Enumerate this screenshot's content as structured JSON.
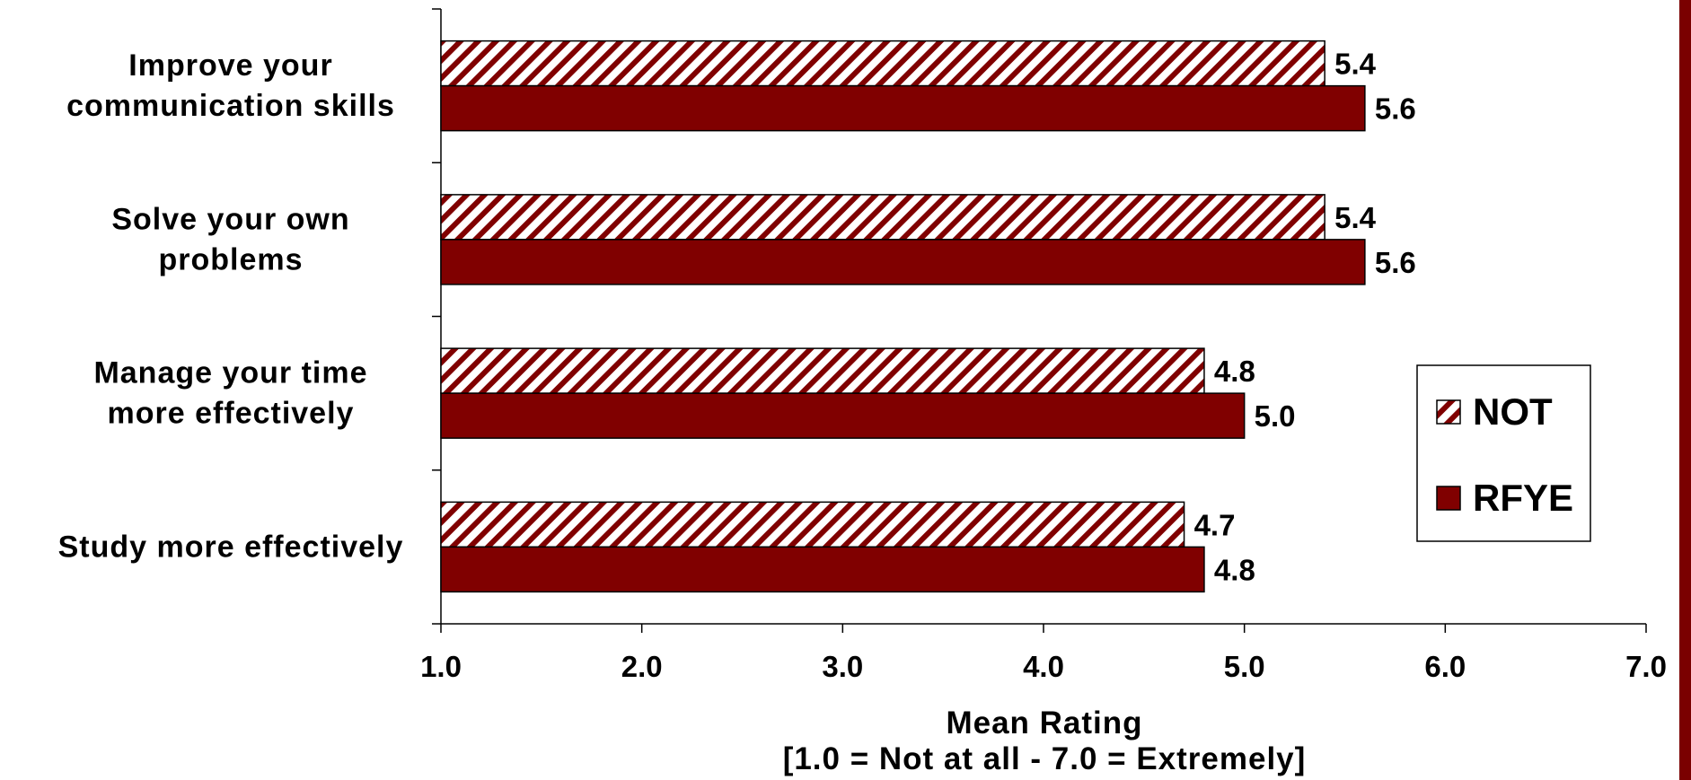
{
  "chart_data": {
    "type": "bar",
    "orientation": "horizontal",
    "categories": [
      [
        "Improve your",
        "communication skills"
      ],
      [
        "Solve your own",
        "problems"
      ],
      [
        "Manage your time",
        "more effectively"
      ],
      [
        "Study more effectively"
      ]
    ],
    "series": [
      {
        "name": "NOT",
        "values": [
          5.4,
          5.4,
          4.8,
          4.7
        ],
        "value_labels": [
          "5.4",
          "5.4",
          "4.8",
          "4.7"
        ],
        "fill": "hatched",
        "color": "#800000"
      },
      {
        "name": "RFYE",
        "values": [
          5.6,
          5.6,
          5.0,
          4.8
        ],
        "value_labels": [
          "5.6",
          "5.6",
          "5.0",
          "4.8"
        ],
        "fill": "solid",
        "color": "#800000"
      }
    ],
    "xlim": [
      1.0,
      7.0
    ],
    "xticks": [
      "1.0",
      "2.0",
      "3.0",
      "4.0",
      "5.0",
      "6.0",
      "7.0"
    ],
    "xlabel": "Mean Rating",
    "xlabel_line2": "[1.0 = Not at all - 7.0 = Extremely]",
    "ylabel": "",
    "title": "",
    "grid": false,
    "legend_placement": "right"
  },
  "colors": {
    "bar": "#800000",
    "border": "#7a0000"
  }
}
